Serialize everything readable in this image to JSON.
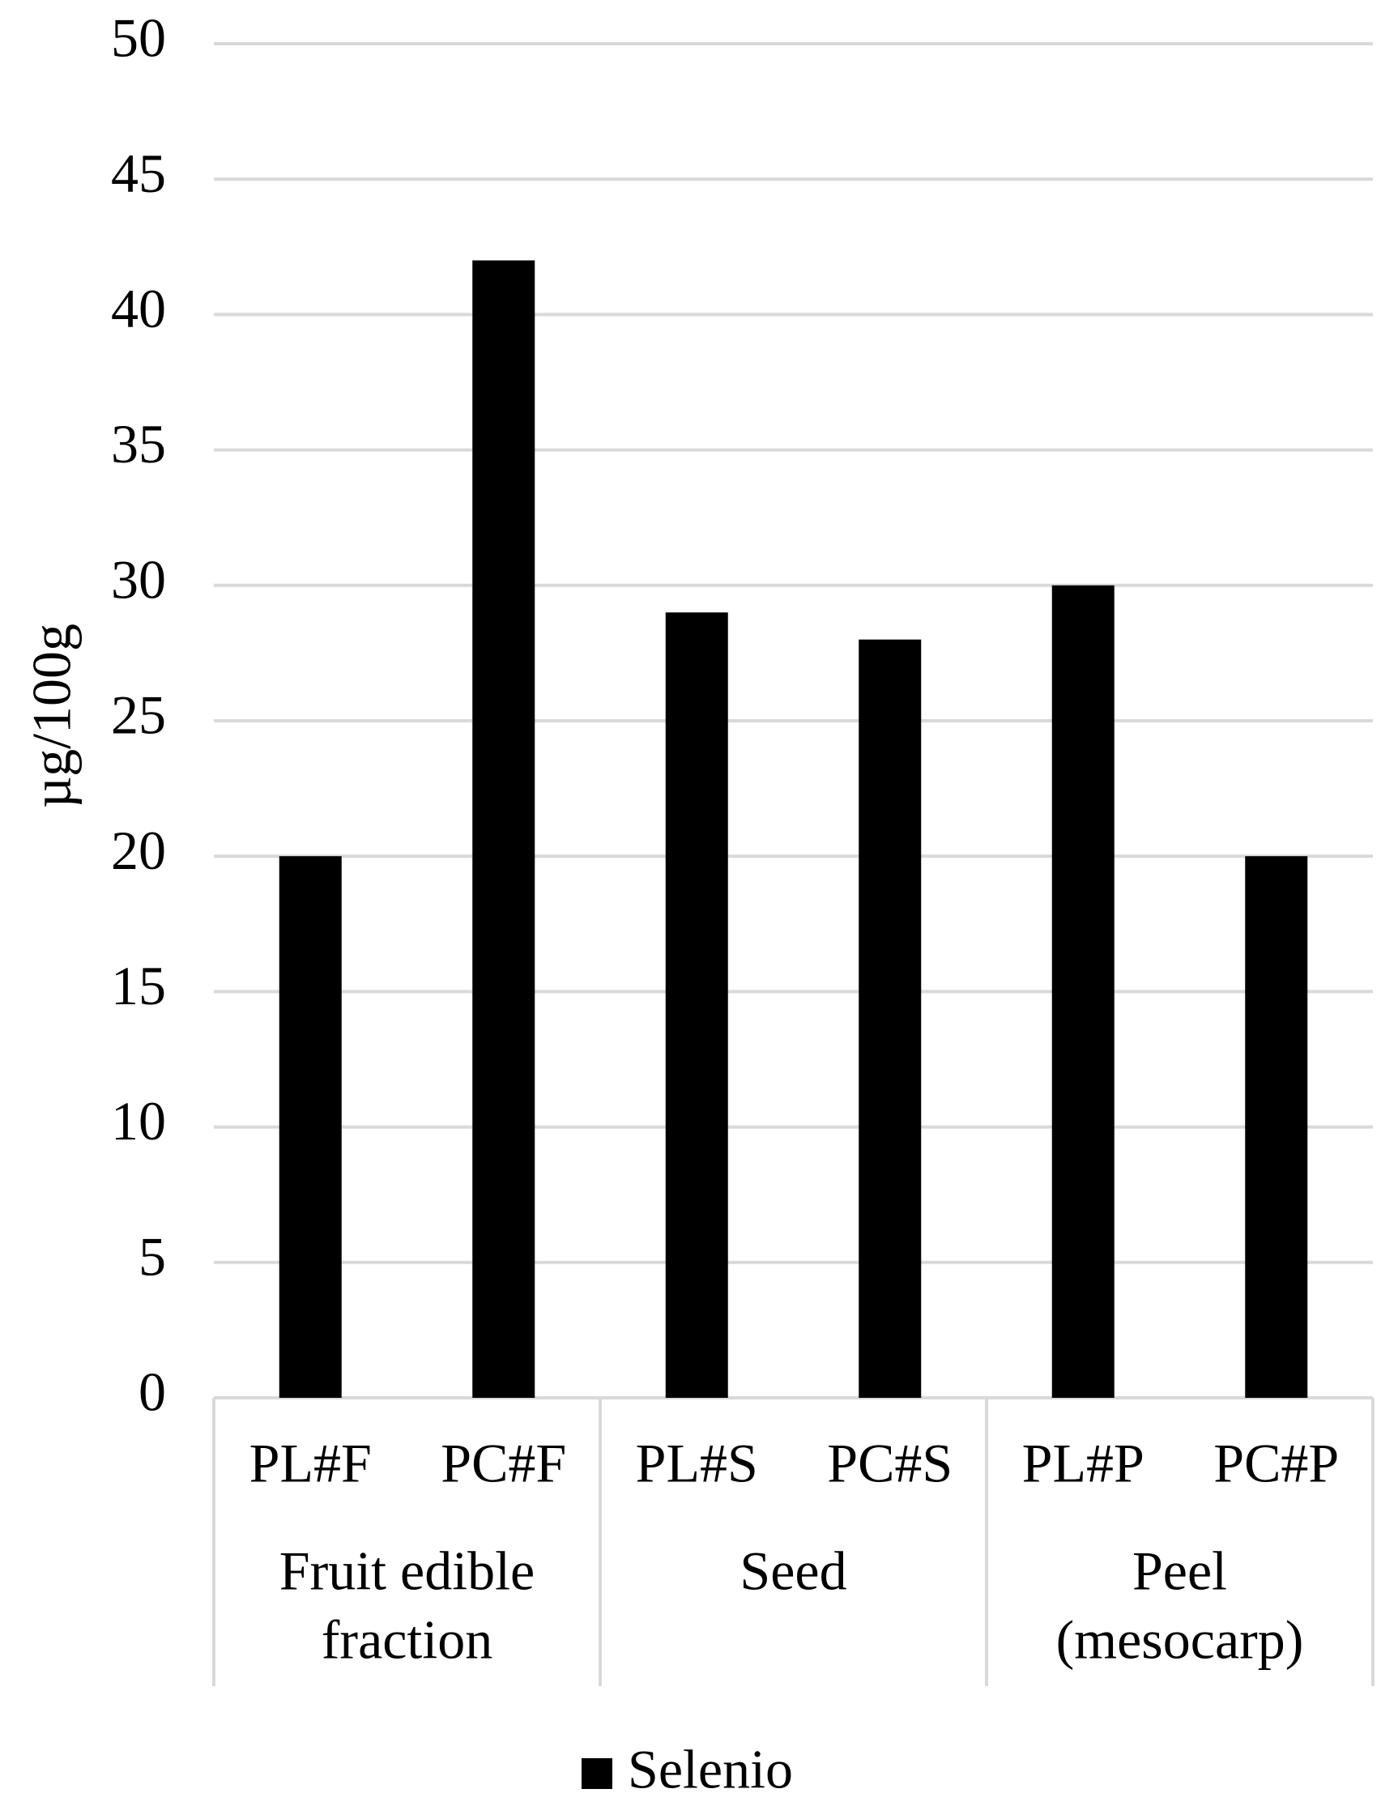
{
  "chart_data": {
    "type": "bar",
    "y_label": "µg/100g",
    "categories": [
      "PL#F",
      "PC#F",
      "PL#S",
      "PC#S",
      "PL#P",
      "PC#P"
    ],
    "groups": [
      [
        "Fruit edible",
        "fraction"
      ],
      [
        "Seed"
      ],
      [
        "Peel",
        "(mesocarp)"
      ]
    ],
    "series": [
      {
        "name": "Selenio",
        "color": "#000000",
        "values": [
          20,
          42,
          29,
          28,
          30,
          20
        ]
      }
    ],
    "ylim": [
      0,
      50
    ],
    "yticks": [
      0,
      5,
      10,
      15,
      20,
      25,
      30,
      35,
      40,
      45,
      50
    ],
    "grid": true,
    "legend": "bottom"
  }
}
